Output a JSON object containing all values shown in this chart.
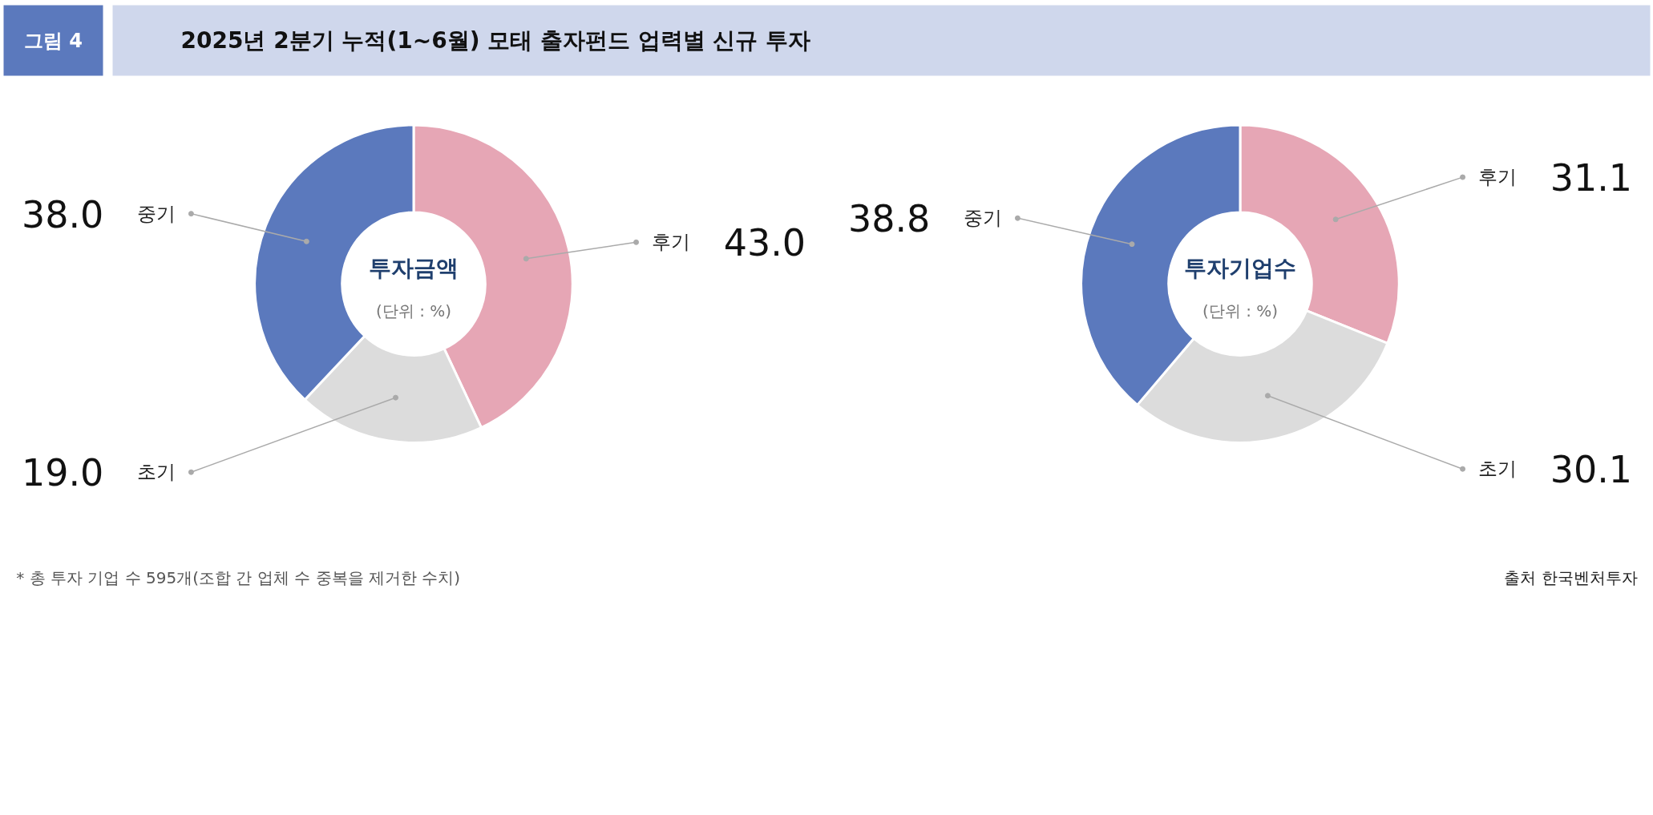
{
  "chart_data": [
    {
      "type": "donut",
      "title": "투자금액",
      "subtitle": "(단위 : %)",
      "categories": [
        "후기",
        "초기",
        "중기"
      ],
      "values": [
        43.0,
        19.0,
        38.0
      ],
      "value_labels": [
        "43.0",
        "19.0",
        "38.0"
      ],
      "colors": [
        "#e6a6b5",
        "#dcdcdc",
        "#5b79bd"
      ],
      "legend": false,
      "annotations": [
        "그림 4",
        "2025년 2분기 누적(1~6월) 모태 출자펀드 업력별 신규 투자",
        "*  총 투자 기업 수 595개(조합 간 업체 수 중복을 제거한 수치)"
      ]
    },
    {
      "type": "donut",
      "title": "투자기업수",
      "subtitle": "(단위 : %)",
      "categories": [
        "후기",
        "초기",
        "중기"
      ],
      "values": [
        31.1,
        30.1,
        38.8
      ],
      "value_labels": [
        "31.1",
        "30.1",
        "38.8"
      ],
      "colors": [
        "#e6a6b5",
        "#dcdcdc",
        "#5b79bd"
      ],
      "legend": false,
      "annotations": [
        "출처 한국벤처투자"
      ]
    }
  ]
}
